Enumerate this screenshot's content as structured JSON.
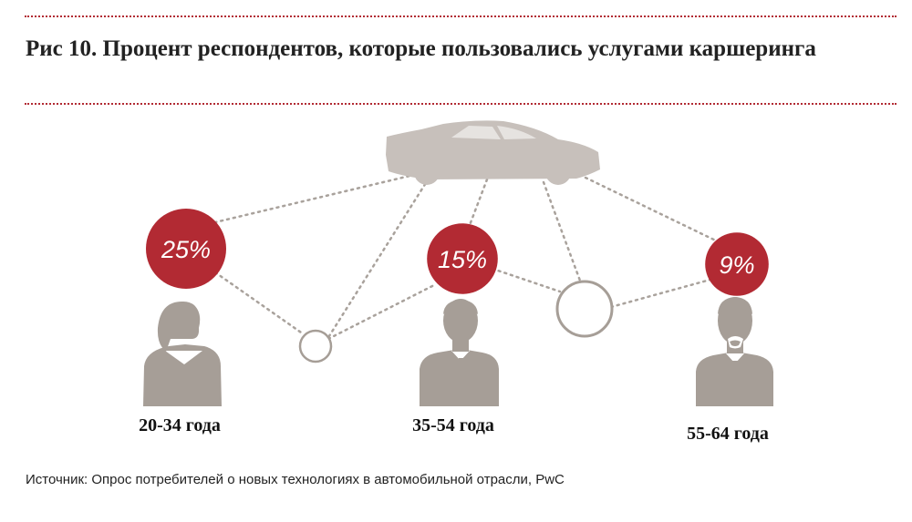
{
  "title": "Рис 10. Процент респондентов, которые пользовались услугами каршеринга",
  "source": "Источник: Опрос потребителей о новых технологиях в автомобильной отрасли, PwC",
  "colors": {
    "accent": "#b22a33",
    "icon_gray": "#a69e97",
    "car_gray": "#c7c0bb",
    "connector": "#a9a29c"
  },
  "icons": [
    "car-icon",
    "woman-icon",
    "man-icon",
    "bearded-man-icon"
  ],
  "chart_data": {
    "type": "bar",
    "title": "Рис 10. Процент респондентов, которые пользовались услугами каршеринга",
    "categories": [
      "20-34 года",
      "35-54 года",
      "55-64 года"
    ],
    "values": [
      25,
      15,
      9
    ],
    "value_labels": [
      "25%",
      "15%",
      "9%"
    ],
    "unit": "%"
  }
}
